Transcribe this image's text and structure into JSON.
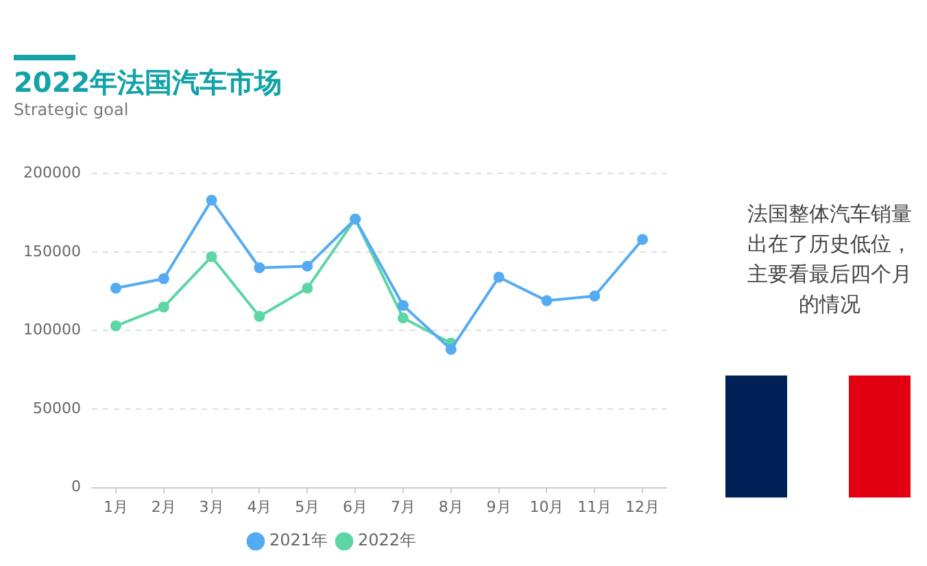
{
  "chart_data": {
    "type": "line",
    "title": "2022年法国汽车市场",
    "subtitle": "Strategic goal",
    "categories": [
      "1月",
      "2月",
      "3月",
      "4月",
      "5月",
      "6月",
      "7月",
      "8月",
      "9月",
      "10月",
      "11月",
      "12月"
    ],
    "series": [
      {
        "name": "2021年",
        "color": "#55abf2",
        "values": [
          127000,
          133000,
          183000,
          140000,
          141000,
          171000,
          116000,
          88000,
          134000,
          119000,
          122000,
          158000
        ]
      },
      {
        "name": "2022年",
        "color": "#5dd5a5",
        "values": [
          103000,
          115000,
          147000,
          109000,
          127000,
          171000,
          108000,
          92000,
          null,
          null,
          null,
          null
        ]
      }
    ],
    "ylim": [
      0,
      200000
    ],
    "yticks": [
      0,
      50000,
      100000,
      150000,
      200000
    ],
    "grid": "y",
    "legend": "bottom",
    "marker": "circle",
    "annotations": [
      "法国整体汽车销量出在了历史低位，主要看最后四个月的情况"
    ]
  }
}
